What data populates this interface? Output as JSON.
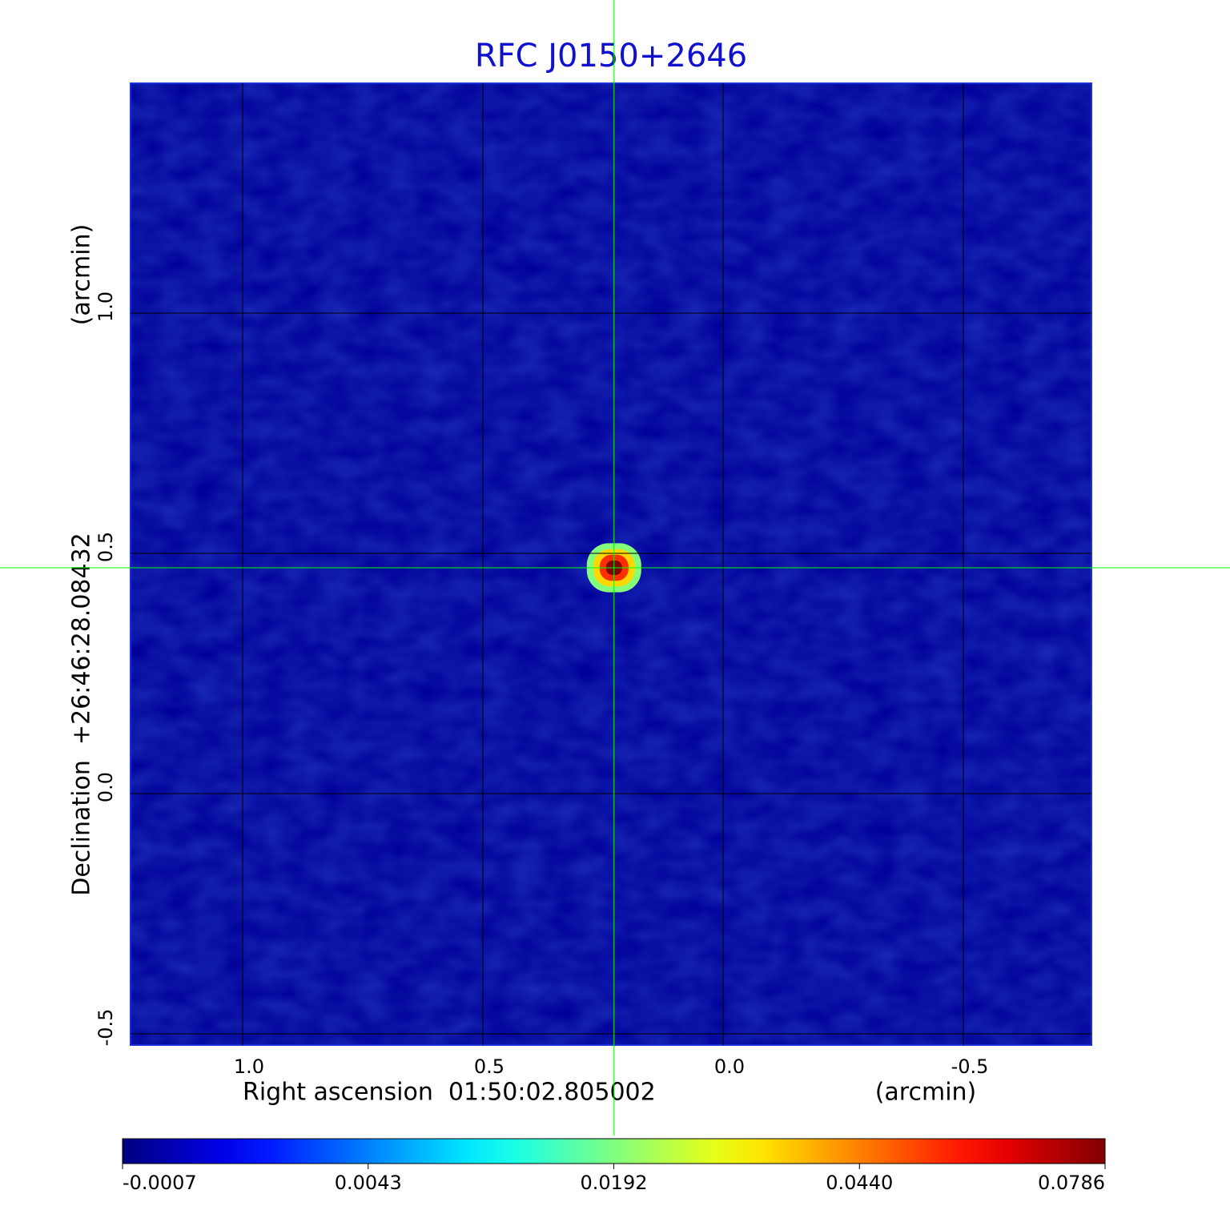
{
  "chart_data": {
    "type": "image",
    "title": "RFC J0150+2646",
    "x_label": "Right ascension  01:50:02.805002",
    "x_unit": "(arcmin)",
    "y_label": "Declination  +26:46:28.08432",
    "y_unit": "(arcmin)",
    "xlim": [
      1.2333,
      -0.7667
    ],
    "ylim": [
      -0.5233,
      1.4783
    ],
    "xticks": [
      {
        "value": 1,
        "label": "1.0"
      },
      0.5,
      {
        "value": 0,
        "label": "0.0"
      },
      -0.5
    ],
    "yticks": [
      {
        "value": -0.5,
        "label": "-0.5"
      },
      {
        "value": 0,
        "label": "0.0"
      },
      0.5,
      {
        "value": 1,
        "label": "1.0"
      }
    ],
    "grid": true,
    "colormap": "jet",
    "background_value": -0.0002,
    "colorbar_ticks": [
      -0.0007,
      0.0043,
      0.0192,
      {
        "value": 0.044,
        "label": "0.0440"
      },
      0.0786
    ],
    "source": {
      "x": 0.227,
      "y": 0.47,
      "peak": 0.0786
    },
    "crosshair_color": "#00ff00",
    "title_color": "#1010d0"
  }
}
